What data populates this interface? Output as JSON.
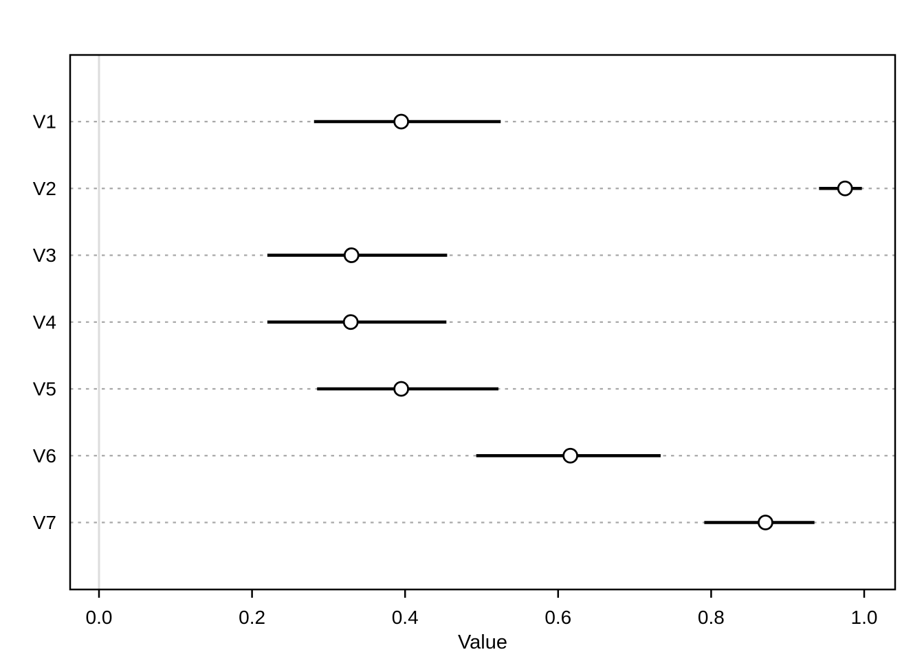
{
  "figure": {
    "background": "#ffffff"
  },
  "chart_data": {
    "type": "scatter",
    "subtype": "dot-and-interval",
    "title": "",
    "xlabel": "Value",
    "ylabel": "",
    "categories": [
      "V1",
      "V2",
      "V3",
      "V4",
      "V5",
      "V6",
      "V7"
    ],
    "series": [
      {
        "name": "estimate",
        "values": [
          0.395,
          0.975,
          0.33,
          0.329,
          0.395,
          0.616,
          0.871
        ]
      },
      {
        "name": "lower",
        "values": [
          0.281,
          0.941,
          0.22,
          0.22,
          0.285,
          0.493,
          0.791
        ]
      },
      {
        "name": "upper",
        "values": [
          0.525,
          0.997,
          0.455,
          0.454,
          0.522,
          0.734,
          0.935
        ]
      }
    ],
    "xlim": [
      -0.038,
      1.04
    ],
    "x_ticks": [
      0.0,
      0.2,
      0.4,
      0.6,
      0.8,
      1.0
    ],
    "x_tick_labels": [
      "0.0",
      "0.2",
      "0.4",
      "0.6",
      "0.8",
      "1.0"
    ],
    "grid": "horizontal-dashed",
    "reference_line_x": 0.0,
    "legend": "none",
    "colors": {
      "point_stroke": "#000000",
      "point_fill": "#ffffff",
      "interval": "#000000",
      "gridline": "#a8a8a8",
      "reference_line": "#dcdcdc",
      "box": "#000000",
      "text": "#000000"
    }
  }
}
